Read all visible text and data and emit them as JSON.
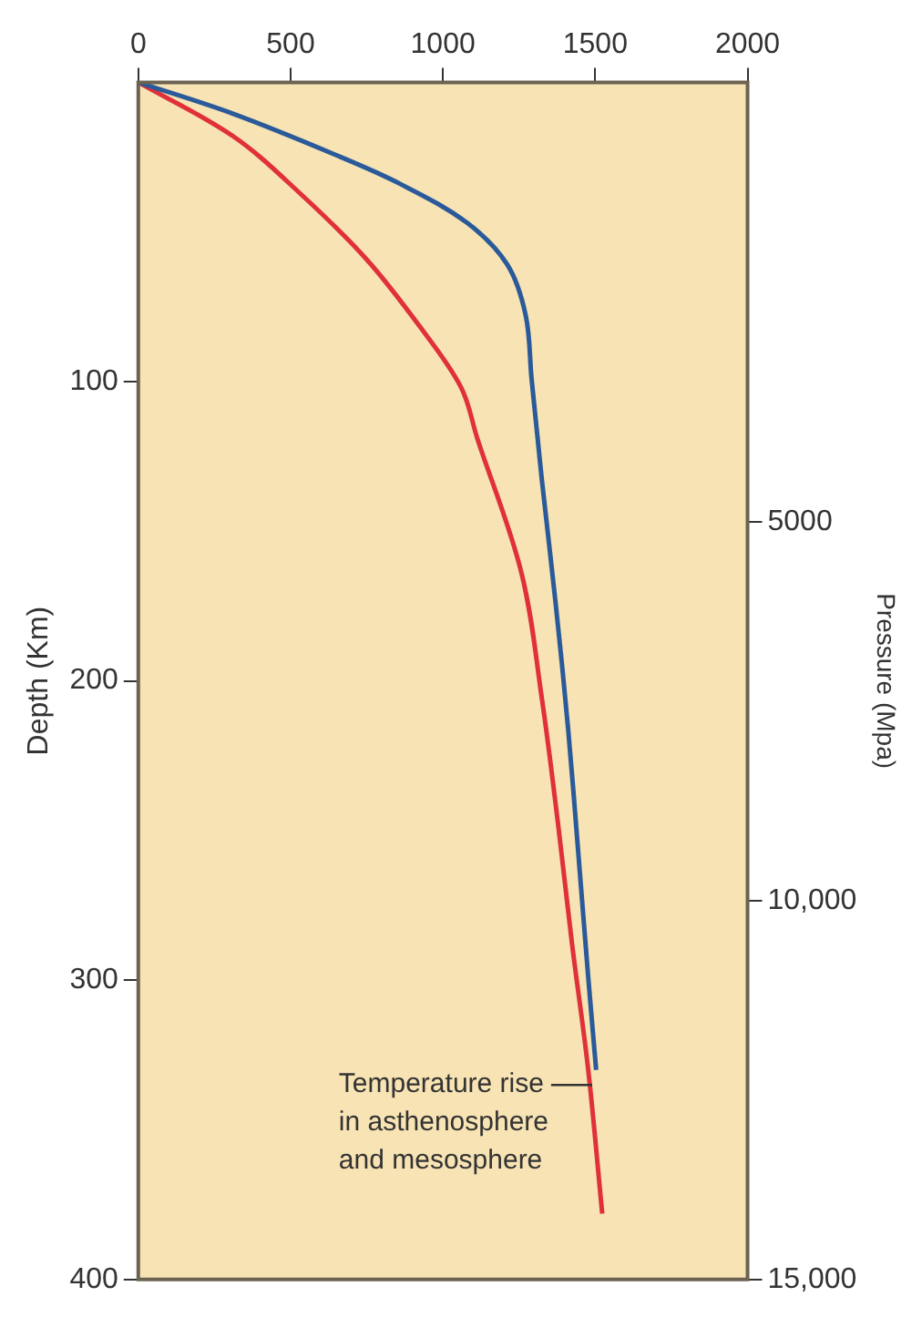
{
  "chart_data": {
    "type": "line",
    "ylabel": "Depth (Km)",
    "y2label": "Pressure (Mpa)",
    "xlim": [
      0,
      2000
    ],
    "xticks": [
      0,
      500,
      1000,
      1500,
      2000
    ],
    "ylim": [
      400,
      0
    ],
    "yticks": [
      100,
      200,
      300,
      400
    ],
    "y2lim": [
      15000,
      -800
    ],
    "y2ticks": [
      5000,
      {
        "value": 10000,
        "label": "10,000"
      },
      {
        "value": 15000,
        "label": "15,000"
      }
    ],
    "series": [
      {
        "color": "#2a5a9a",
        "x": [
          0,
          311,
          642,
          861,
          1080,
          1212,
          1272,
          1291,
          1311,
          1325,
          1371,
          1411,
          1444,
          1477,
          1503
        ],
        "values": [
          0,
          10.5,
          24,
          34,
          47,
          61,
          78,
          99,
          119,
          133,
          175,
          216,
          257,
          299,
          330
        ]
      },
      {
        "color": "#e0303a",
        "x": [
          0,
          311,
          530,
          748,
          927,
          1060,
          1113,
          1258,
          1325,
          1377,
          1424,
          1477,
          1523
        ],
        "values": [
          0,
          18,
          37,
          59,
          82,
          102,
          119,
          164,
          206,
          247,
          288,
          330,
          378
        ]
      }
    ],
    "annotations": [
      {
        "text": "Temperature rise\nin asthenosphere\nand mesosphere",
        "x": 1490,
        "y": 335
      }
    ],
    "legend": false,
    "marker": "none",
    "line_style": "solid"
  }
}
